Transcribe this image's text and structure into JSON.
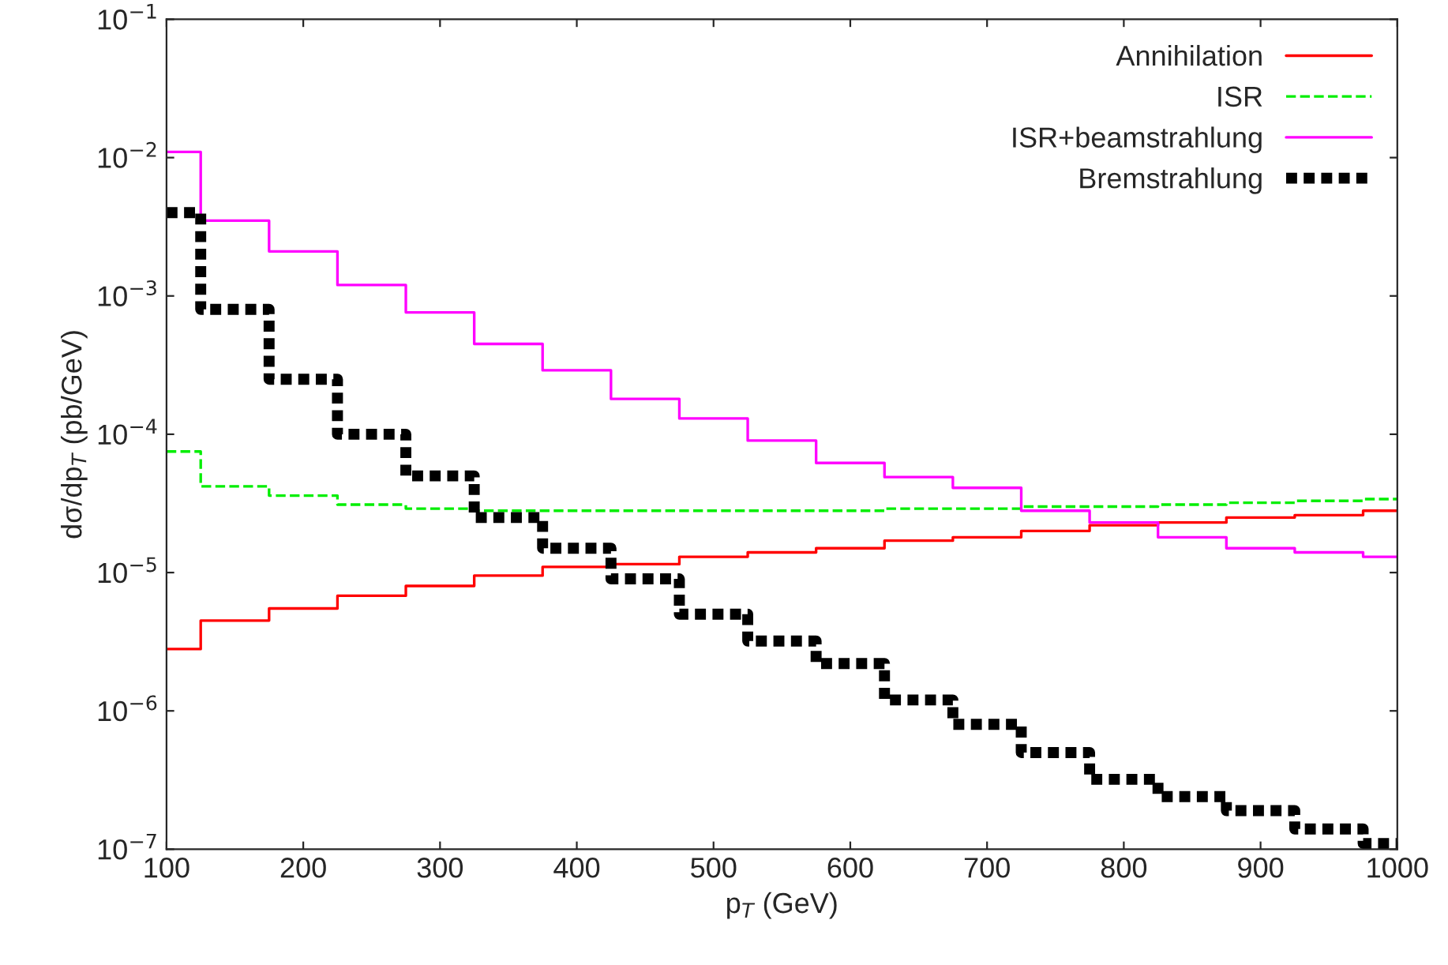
{
  "chart_data": {
    "type": "step",
    "xlabel": "p$_{T}$ (GeV)",
    "ylabel": "dσ/dp$_{T}$ (pb/GeV)",
    "x": [
      100,
      150,
      200,
      250,
      300,
      350,
      400,
      450,
      500,
      550,
      600,
      650,
      700,
      750,
      800,
      850,
      900,
      950,
      1000
    ],
    "series": [
      {
        "name": "Annihilation",
        "color": "#ff0000",
        "line_style": "solid",
        "values": [
          2.8e-06,
          4.5e-06,
          5.5e-06,
          6.8e-06,
          8e-06,
          9.5e-06,
          1.1e-05,
          1.15e-05,
          1.3e-05,
          1.4e-05,
          1.5e-05,
          1.7e-05,
          1.8e-05,
          2e-05,
          2.2e-05,
          2.3e-05,
          2.5e-05,
          2.6e-05,
          2.8e-05
        ]
      },
      {
        "name": "ISR",
        "color": "#00ee00",
        "line_style": "dashed",
        "values": [
          7.5e-05,
          4.2e-05,
          3.6e-05,
          3.1e-05,
          2.9e-05,
          2.8e-05,
          2.8e-05,
          2.8e-05,
          2.8e-05,
          2.8e-05,
          2.8e-05,
          2.9e-05,
          2.9e-05,
          3e-05,
          3e-05,
          3.1e-05,
          3.2e-05,
          3.3e-05,
          3.4e-05
        ]
      },
      {
        "name": "ISR+beamstrahlung",
        "color": "#ff00ff",
        "line_style": "solid",
        "values": [
          0.011,
          0.0035,
          0.0021,
          0.0012,
          0.00076,
          0.00045,
          0.00029,
          0.00018,
          0.00013,
          9e-05,
          6.2e-05,
          4.9e-05,
          4.1e-05,
          2.8e-05,
          2.3e-05,
          1.8e-05,
          1.5e-05,
          1.4e-05,
          1.3e-05
        ]
      },
      {
        "name": "Bremstrahlung",
        "color": "#000000",
        "line_style": "dotted",
        "values": [
          0.004,
          0.0008,
          0.00025,
          0.0001,
          5e-05,
          2.5e-05,
          1.5e-05,
          9e-06,
          5e-06,
          3.2e-06,
          2.2e-06,
          1.2e-06,
          8e-07,
          5e-07,
          3.2e-07,
          2.4e-07,
          1.9e-07,
          1.4e-07,
          1.1e-07
        ]
      }
    ],
    "log": "y",
    "xlim": [
      100,
      1000
    ],
    "xticks": [
      100,
      200,
      300,
      400,
      500,
      600,
      700,
      800,
      900,
      1000
    ],
    "ylim": [
      1e-07,
      0.1
    ],
    "yticks": [
      {
        "value": 1e-07,
        "label": "10$^{−7}$"
      },
      {
        "value": 1e-06,
        "label": "10$^{−6}$"
      },
      {
        "value": 1e-05,
        "label": "10$^{−5}$"
      },
      {
        "value": 0.0001,
        "label": "10$^{−4}$"
      },
      {
        "value": 0.001,
        "label": "10$^{−3}$"
      },
      {
        "value": 0.01,
        "label": "10$^{−2}$"
      },
      {
        "value": 0.1,
        "label": "10$^{−1}$"
      }
    ],
    "legend": "top right",
    "grid": false
  }
}
